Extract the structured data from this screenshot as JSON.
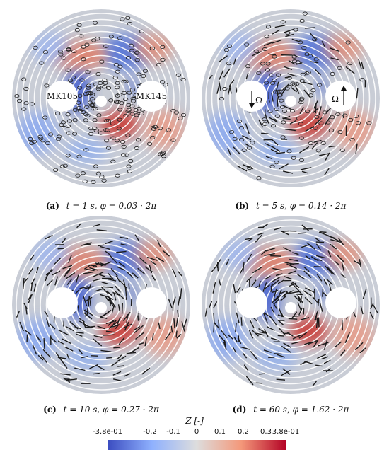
{
  "panels": [
    {
      "label": "(a)",
      "time": "t = 1 s",
      "phase": "φ = 0.03 · 2π",
      "left_hole": "MK105",
      "right_hole": "MK145",
      "omega_left": "",
      "omega_right": "",
      "markers": "circles"
    },
    {
      "label": "(b)",
      "time": "t = 5 s",
      "phase": "φ = 0.14 · 2π",
      "left_hole": "",
      "right_hole": "",
      "omega_left": "Ω",
      "omega_right": "Ω",
      "markers": "mixed"
    },
    {
      "label": "(c)",
      "time": "t = 10 s",
      "phase": "φ = 0.27 · 2π",
      "left_hole": "",
      "right_hole": "",
      "omega_left": "",
      "omega_right": "",
      "markers": "sticks"
    },
    {
      "label": "(d)",
      "time": "t = 60 s",
      "phase": "φ = 1.62 · 2π",
      "left_hole": "",
      "right_hole": "",
      "omega_left": "",
      "omega_right": "",
      "markers": "sticks"
    }
  ],
  "colorbar": {
    "title": "Z [-]",
    "ticks": [
      "-3.8e-01",
      "-0.2",
      "-0.1",
      "0",
      "0.1",
      "0.2",
      "0.3",
      "3.8e-01"
    ],
    "colors": {
      "low": "#3b4cc0",
      "mid": "#dddddd",
      "high": "#b40426"
    }
  }
}
